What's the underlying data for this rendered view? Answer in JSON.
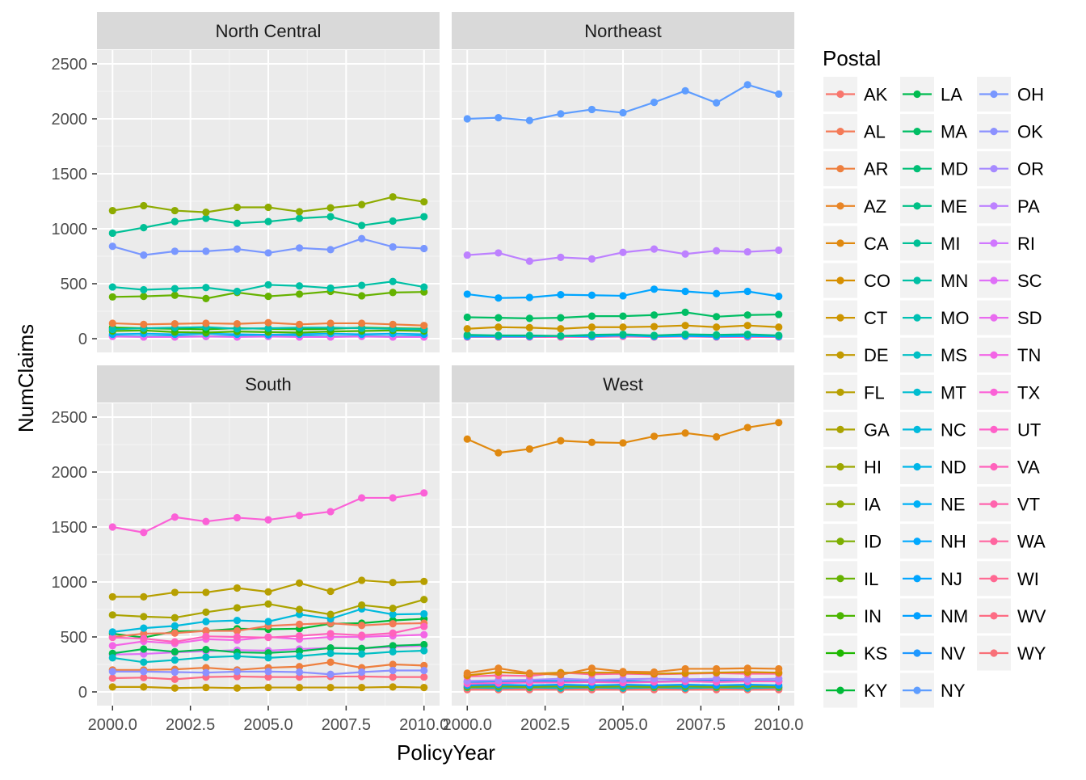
{
  "chart_data": {
    "type": "line",
    "xlabel": "PolicyYear",
    "ylabel": "NumClaims",
    "xlim": [
      2000,
      2010
    ],
    "ylim": [
      0,
      2500
    ],
    "x_ticks": [
      2000.0,
      2002.5,
      2005.0,
      2007.5,
      2010.0
    ],
    "x_tick_labels": [
      "2000.0",
      "2002.5",
      "2005.0",
      "2007.5",
      "2010.0"
    ],
    "y_ticks": [
      0,
      500,
      1000,
      1500,
      2000,
      2500
    ],
    "y_tick_labels": [
      "0",
      "500",
      "1000",
      "1500",
      "2000",
      "2500"
    ],
    "grid": true,
    "legend": {
      "title": "Postal",
      "position": "right"
    },
    "x": [
      2000,
      2001,
      2002,
      2003,
      2004,
      2005,
      2006,
      2007,
      2008,
      2009,
      2010
    ],
    "facets": [
      {
        "name": "North Central",
        "series": [
          {
            "name": "IA",
            "values": [
              1165,
              1210,
              1165,
              1150,
              1195,
              1195,
              1155,
              1190,
              1220,
              1290,
              1245
            ]
          },
          {
            "name": "MI",
            "values": [
              960,
              1010,
              1065,
              1095,
              1050,
              1065,
              1095,
              1110,
              1030,
              1070,
              1110
            ]
          },
          {
            "name": "OH",
            "values": [
              840,
              760,
              795,
              795,
              815,
              780,
              825,
              810,
              910,
              835,
              820
            ]
          },
          {
            "name": "MN",
            "values": [
              470,
              445,
              455,
              465,
              430,
              490,
              480,
              460,
              485,
              520,
              470
            ]
          },
          {
            "name": "IL",
            "values": [
              380,
              385,
              395,
              365,
              420,
              385,
              405,
              430,
              390,
              420,
              425
            ]
          },
          {
            "name": "AR",
            "values": [
              140,
              130,
              135,
              140,
              135,
              145,
              130,
              140,
              140,
              130,
              120
            ]
          },
          {
            "name": "MO",
            "values": [
              85,
              95,
              100,
              105,
              90,
              95,
              100,
              100,
              95,
              90,
              85
            ]
          },
          {
            "name": "KS",
            "values": [
              100,
              95,
              90,
              85,
              95,
              90,
              85,
              90,
              100,
              95,
              90
            ]
          },
          {
            "name": "IN",
            "values": [
              70,
              75,
              60,
              55,
              65,
              60,
              55,
              65,
              70,
              75,
              70
            ]
          },
          {
            "name": "NE",
            "values": [
              40,
              45,
              40,
              45,
              40,
              35,
              40,
              45,
              40,
              45,
              40
            ]
          },
          {
            "name": "SD",
            "values": [
              20,
              15,
              15,
              20,
              15,
              20,
              15,
              15,
              20,
              15,
              15
            ]
          },
          {
            "name": "ND",
            "values": [
              25,
              20,
              25,
              20,
              25,
              20,
              25,
              20,
              25,
              20,
              25
            ]
          }
        ]
      },
      {
        "name": "Northeast",
        "series": [
          {
            "name": "NY",
            "values": [
              2000,
              2010,
              1985,
              2045,
              2085,
              2055,
              2150,
              2255,
              2145,
              2310,
              2225
            ]
          },
          {
            "name": "PA",
            "values": [
              760,
              780,
              705,
              740,
              725,
              785,
              815,
              770,
              800,
              790,
              805
            ]
          },
          {
            "name": "NJ",
            "values": [
              405,
              370,
              375,
              400,
              395,
              390,
              450,
              430,
              410,
              430,
              385
            ]
          },
          {
            "name": "MA",
            "values": [
              195,
              190,
              185,
              190,
              205,
              205,
              215,
              240,
              200,
              215,
              220
            ]
          },
          {
            "name": "CT",
            "values": [
              90,
              105,
              100,
              90,
              105,
              105,
              110,
              120,
              105,
              120,
              105
            ]
          },
          {
            "name": "ME",
            "values": [
              35,
              30,
              30,
              25,
              35,
              40,
              30,
              40,
              35,
              40,
              30
            ]
          },
          {
            "name": "NH",
            "values": [
              20,
              20,
              20,
              25,
              20,
              30,
              20,
              25,
              20,
              25,
              20
            ]
          },
          {
            "name": "RI",
            "values": [
              25,
              25,
              25,
              20,
              25,
              30,
              25,
              30,
              25,
              25,
              25
            ]
          },
          {
            "name": "VT",
            "values": [
              15,
              15,
              15,
              15,
              15,
              20,
              15,
              20,
              15,
              15,
              15
            ]
          }
        ]
      },
      {
        "name": "South",
        "series": [
          {
            "name": "TX",
            "values": [
              1500,
              1450,
              1590,
              1550,
              1585,
              1565,
              1605,
              1640,
              1765,
              1765,
              1810
            ]
          },
          {
            "name": "FL",
            "values": [
              865,
              865,
              905,
              905,
              945,
              910,
              990,
              915,
              1015,
              995,
              1005
            ]
          },
          {
            "name": "GA",
            "values": [
              700,
              685,
              675,
              725,
              765,
              800,
              750,
              705,
              790,
              760,
              840
            ]
          },
          {
            "name": "NC",
            "values": [
              545,
              580,
              600,
              640,
              650,
              640,
              705,
              665,
              755,
              705,
              710
            ]
          },
          {
            "name": "VA",
            "values": [
              495,
              485,
              455,
              505,
              500,
              495,
              510,
              530,
              515,
              535,
              595
            ]
          },
          {
            "name": "AL",
            "values": [
              500,
              530,
              535,
              555,
              555,
              600,
              615,
              625,
              605,
              620,
              625
            ]
          },
          {
            "name": "KY",
            "values": [
              530,
              495,
              550,
              555,
              575,
              570,
              575,
              620,
              625,
              650,
              665
            ]
          },
          {
            "name": "TN",
            "values": [
              420,
              460,
              440,
              480,
              470,
              500,
              480,
              500,
              500,
              510,
              520
            ]
          },
          {
            "name": "MS",
            "values": [
              310,
              270,
              290,
              315,
              325,
              310,
              325,
              350,
              345,
              365,
              375
            ]
          },
          {
            "name": "LA",
            "values": [
              350,
              390,
              365,
              385,
              360,
              355,
              370,
              400,
              395,
              420,
              430
            ]
          },
          {
            "name": "SC",
            "values": [
              340,
              345,
              360,
              370,
              380,
              375,
              390,
              400,
              395,
              410,
              420
            ]
          },
          {
            "name": "OK",
            "values": [
              185,
              185,
              180,
              175,
              185,
              185,
              180,
              160,
              180,
              195,
              195
            ]
          },
          {
            "name": "AR",
            "values": [
              200,
              200,
              205,
              220,
              200,
              220,
              230,
              270,
              220,
              250,
              240
            ]
          },
          {
            "name": "WV",
            "values": [
              125,
              130,
              115,
              135,
              140,
              135,
              135,
              140,
              140,
              135,
              135
            ]
          },
          {
            "name": "DE",
            "values": [
              45,
              45,
              35,
              40,
              35,
              40,
              40,
              40,
              40,
              45,
              40
            ]
          }
        ]
      },
      {
        "name": "West",
        "series": [
          {
            "name": "CA",
            "values": [
              2300,
              2175,
              2210,
              2285,
              2270,
              2265,
              2325,
              2355,
              2320,
              2405,
              2450
            ]
          },
          {
            "name": "AZ",
            "values": [
              170,
              215,
              170,
              155,
              215,
              185,
              180,
              210,
              210,
              215,
              210
            ]
          },
          {
            "name": "CO",
            "values": [
              150,
              180,
              165,
              175,
              175,
              175,
              165,
              170,
              175,
              180,
              175
            ]
          },
          {
            "name": "WA",
            "values": [
              140,
              150,
              145,
              175,
              160,
              165,
              160,
              165,
              170,
              165,
              165
            ]
          },
          {
            "name": "OR",
            "values": [
              100,
              105,
              110,
              120,
              110,
              115,
              120,
              115,
              120,
              115,
              120
            ]
          },
          {
            "name": "UT",
            "values": [
              75,
              80,
              85,
              85,
              90,
              85,
              90,
              95,
              90,
              95,
              95
            ]
          },
          {
            "name": "NV",
            "values": [
              90,
              95,
              100,
              100,
              95,
              100,
              95,
              100,
              105,
              100,
              100
            ]
          },
          {
            "name": "NM",
            "values": [
              60,
              65,
              60,
              65,
              60,
              65,
              60,
              65,
              60,
              65,
              60
            ]
          },
          {
            "name": "ID",
            "values": [
              45,
              50,
              45,
              50,
              45,
              50,
              45,
              50,
              45,
              50,
              45
            ]
          },
          {
            "name": "MT",
            "values": [
              40,
              35,
              40,
              35,
              40,
              35,
              40,
              35,
              40,
              35,
              40
            ]
          },
          {
            "name": "AK",
            "values": [
              30,
              25,
              30,
              25,
              30,
              25,
              30,
              25,
              30,
              25,
              30
            ]
          },
          {
            "name": "WY",
            "values": [
              20,
              20,
              20,
              20,
              20,
              20,
              20,
              20,
              20,
              20,
              20
            ]
          }
        ]
      }
    ],
    "legend_entries": [
      {
        "name": "AK",
        "color": "#F8766D"
      },
      {
        "name": "AL",
        "color": "#F47A57"
      },
      {
        "name": "AR",
        "color": "#EE7F3E"
      },
      {
        "name": "AZ",
        "color": "#E88526"
      },
      {
        "name": "CA",
        "color": "#E0890F"
      },
      {
        "name": "CO",
        "color": "#D78F00"
      },
      {
        "name": "CT",
        "color": "#CD9500"
      },
      {
        "name": "DE",
        "color": "#C29A00"
      },
      {
        "name": "FL",
        "color": "#B79F00"
      },
      {
        "name": "GA",
        "color": "#ABA300"
      },
      {
        "name": "HI",
        "color": "#9DA700"
      },
      {
        "name": "IA",
        "color": "#8EAB00"
      },
      {
        "name": "ID",
        "color": "#7CAE00"
      },
      {
        "name": "IL",
        "color": "#66B200"
      },
      {
        "name": "IN",
        "color": "#4BB500"
      },
      {
        "name": "KS",
        "color": "#1EB800"
      },
      {
        "name": "KY",
        "color": "#00BA38"
      },
      {
        "name": "LA",
        "color": "#00BC50"
      },
      {
        "name": "MA",
        "color": "#00BE64"
      },
      {
        "name": "MD",
        "color": "#00BF76"
      },
      {
        "name": "ME",
        "color": "#00C086"
      },
      {
        "name": "MI",
        "color": "#00C096"
      },
      {
        "name": "MN",
        "color": "#00C0A5"
      },
      {
        "name": "MO",
        "color": "#00C0B3"
      },
      {
        "name": "MS",
        "color": "#00BFC4"
      },
      {
        "name": "MT",
        "color": "#00BDD0"
      },
      {
        "name": "NC",
        "color": "#00BADC"
      },
      {
        "name": "ND",
        "color": "#00B6E8"
      },
      {
        "name": "NE",
        "color": "#00B0F6"
      },
      {
        "name": "NH",
        "color": "#00A9FF"
      },
      {
        "name": "NJ",
        "color": "#00A5FF"
      },
      {
        "name": "NM",
        "color": "#00A0FF"
      },
      {
        "name": "NV",
        "color": "#1F98FF"
      },
      {
        "name": "NY",
        "color": "#5E9DFF"
      },
      {
        "name": "OH",
        "color": "#7997FF"
      },
      {
        "name": "OK",
        "color": "#8C91FF"
      },
      {
        "name": "OR",
        "color": "#A68AFF"
      },
      {
        "name": "PA",
        "color": "#BD81FF"
      },
      {
        "name": "RI",
        "color": "#D077FF"
      },
      {
        "name": "SC",
        "color": "#DF70F8"
      },
      {
        "name": "SD",
        "color": "#E96BEF"
      },
      {
        "name": "TN",
        "color": "#F365E6"
      },
      {
        "name": "TX",
        "color": "#FB61D7"
      },
      {
        "name": "UT",
        "color": "#FF61C9"
      },
      {
        "name": "VA",
        "color": "#FF62BC"
      },
      {
        "name": "VT",
        "color": "#FF64AE"
      },
      {
        "name": "WA",
        "color": "#FF66A0"
      },
      {
        "name": "WI",
        "color": "#FF6892"
      },
      {
        "name": "WV",
        "color": "#FD6C84"
      },
      {
        "name": "WY",
        "color": "#F87078"
      }
    ]
  }
}
